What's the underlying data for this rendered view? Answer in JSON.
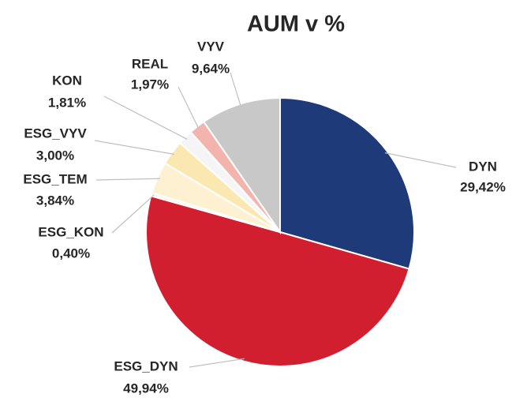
{
  "chart_data": {
    "type": "pie",
    "title": "AUM v %",
    "categories": [
      "DYN",
      "ESG_DYN",
      "ESG_KON",
      "ESG_TEM",
      "ESG_VYV",
      "KON",
      "REAL",
      "VYV"
    ],
    "values": [
      29.42,
      49.94,
      0.4,
      3.84,
      3.0,
      1.81,
      1.97,
      9.64
    ],
    "value_labels": [
      "29,42%",
      "49,94%",
      "0,40%",
      "3,84%",
      "3,00%",
      "1,81%",
      "1,97%",
      "9,64%"
    ],
    "colors": [
      "#1f3a78",
      "#d11f2f",
      "#fdf4e3",
      "#fdf1d2",
      "#fbe8b0",
      "#f5f5f5",
      "#f4b4ae",
      "#c8c8c8"
    ]
  }
}
